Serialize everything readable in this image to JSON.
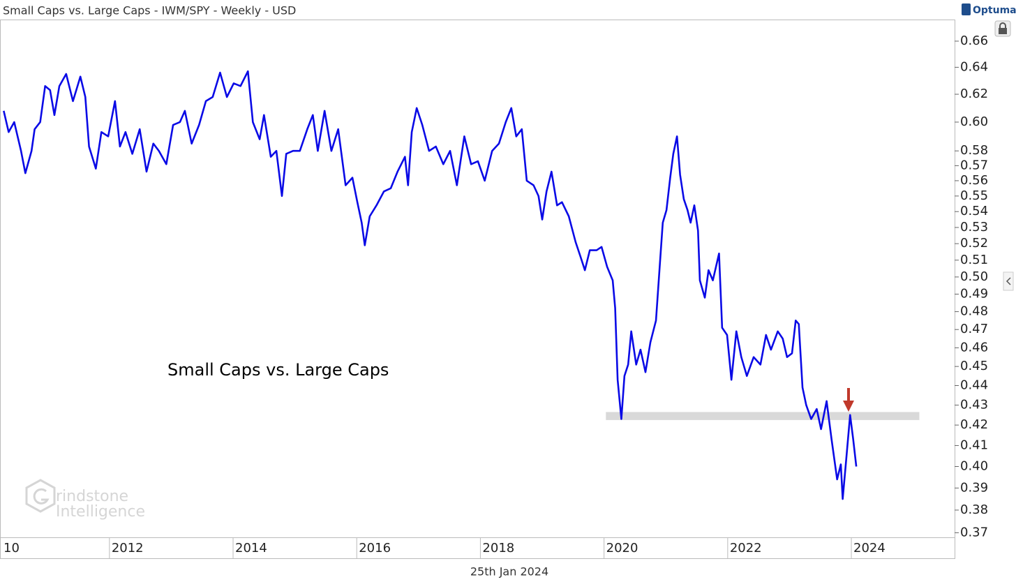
{
  "chart_data": {
    "type": "line",
    "title": "Small Caps vs. Large Caps - IWM/SPY - Weekly - USD",
    "annotation": "Small Caps vs. Large Caps",
    "date_label": "25th Jan 2024",
    "brand": "Optuma",
    "watermark": [
      "rindstone",
      "Intelligence"
    ],
    "log_scale": true,
    "xlim": [
      2010.23,
      2025.67
    ],
    "ylim": [
      0.368,
      0.677
    ],
    "xticks": [
      {
        "value": 2010,
        "label": "10"
      },
      2012,
      2014,
      2016,
      2018,
      2020,
      2022,
      2024
    ],
    "yticks": [
      0.66,
      0.64,
      0.62,
      {
        "value": 0.6,
        "label": "0.60"
      },
      0.58,
      0.57,
      0.56,
      0.55,
      0.54,
      0.53,
      0.52,
      0.51,
      {
        "value": 0.5,
        "label": "0.50"
      },
      0.49,
      0.48,
      0.47,
      0.46,
      0.45,
      0.44,
      0.43,
      0.42,
      0.41,
      {
        "value": 0.4,
        "label": "0.40"
      },
      0.39,
      0.38,
      0.37
    ],
    "support_zone": {
      "from": 0.4225,
      "to": 0.4265,
      "x": [
        2020.03,
        2025.1
      ],
      "color": "#d9d9d9"
    },
    "series": [
      {
        "name": "IWM/SPY",
        "color": "#0a0ae6",
        "x": [
          2010.29,
          2010.37,
          2010.46,
          2010.57,
          2010.64,
          2010.74,
          2010.79,
          2010.88,
          2010.96,
          2011.04,
          2011.11,
          2011.19,
          2011.3,
          2011.41,
          2011.53,
          2011.61,
          2011.67,
          2011.78,
          2011.87,
          2011.98,
          2012.09,
          2012.17,
          2012.26,
          2012.37,
          2012.49,
          2012.6,
          2012.71,
          2012.8,
          2012.92,
          2013.03,
          2013.14,
          2013.22,
          2013.33,
          2013.45,
          2013.56,
          2013.67,
          2013.79,
          2013.9,
          2014.01,
          2014.12,
          2014.24,
          2014.32,
          2014.43,
          2014.5,
          2014.61,
          2014.7,
          2014.79,
          2014.86,
          2014.97,
          2015.08,
          2015.2,
          2015.29,
          2015.37,
          2015.48,
          2015.59,
          2015.7,
          2015.82,
          2015.93,
          2016.01,
          2016.08,
          2016.13,
          2016.21,
          2016.32,
          2016.44,
          2016.55,
          2016.66,
          2016.78,
          2016.83,
          2016.89,
          2016.97,
          2017.06,
          2017.17,
          2017.28,
          2017.4,
          2017.51,
          2017.62,
          2017.74,
          2017.85,
          2017.96,
          2018.07,
          2018.19,
          2018.3,
          2018.41,
          2018.5,
          2018.58,
          2018.67,
          2018.75,
          2018.86,
          2018.94,
          2019.0,
          2019.07,
          2019.15,
          2019.24,
          2019.32,
          2019.43,
          2019.54,
          2019.62,
          2019.69,
          2019.77,
          2019.88,
          2019.96,
          2020.05,
          2020.14,
          2020.18,
          2020.22,
          2020.28,
          2020.33,
          2020.39,
          2020.44,
          2020.52,
          2020.59,
          2020.67,
          2020.75,
          2020.84,
          2020.9,
          2020.95,
          2021.01,
          2021.07,
          2021.12,
          2021.18,
          2021.23,
          2021.29,
          2021.35,
          2021.4,
          2021.46,
          2021.52,
          2021.55,
          2021.63,
          2021.69,
          2021.76,
          2021.86,
          2021.91,
          2021.99,
          2022.06,
          2022.14,
          2022.22,
          2022.31,
          2022.42,
          2022.53,
          2022.62,
          2022.7,
          2022.81,
          2022.89,
          2022.96,
          2023.04,
          2023.1,
          2023.15,
          2023.21,
          2023.27,
          2023.35,
          2023.44,
          2023.51,
          2023.6,
          2023.68,
          2023.77,
          2023.83,
          2023.86,
          2023.91,
          2023.98,
          2024.03,
          2024.08
        ],
        "values": [
          0.608,
          0.593,
          0.6,
          0.58,
          0.565,
          0.58,
          0.595,
          0.6,
          0.626,
          0.623,
          0.605,
          0.626,
          0.635,
          0.615,
          0.633,
          0.618,
          0.583,
          0.568,
          0.593,
          0.59,
          0.615,
          0.583,
          0.593,
          0.578,
          0.595,
          0.566,
          0.585,
          0.58,
          0.571,
          0.598,
          0.6,
          0.608,
          0.585,
          0.598,
          0.615,
          0.618,
          0.636,
          0.618,
          0.628,
          0.626,
          0.637,
          0.6,
          0.588,
          0.605,
          0.576,
          0.58,
          0.55,
          0.578,
          0.58,
          0.58,
          0.595,
          0.605,
          0.58,
          0.608,
          0.58,
          0.595,
          0.557,
          0.562,
          0.546,
          0.533,
          0.519,
          0.537,
          0.544,
          0.553,
          0.555,
          0.566,
          0.576,
          0.557,
          0.593,
          0.61,
          0.598,
          0.58,
          0.583,
          0.571,
          0.58,
          0.557,
          0.59,
          0.571,
          0.573,
          0.56,
          0.58,
          0.585,
          0.6,
          0.61,
          0.59,
          0.595,
          0.56,
          0.557,
          0.55,
          0.535,
          0.553,
          0.566,
          0.544,
          0.546,
          0.537,
          0.521,
          0.512,
          0.504,
          0.516,
          0.516,
          0.518,
          0.506,
          0.498,
          0.482,
          0.443,
          0.423,
          0.445,
          0.451,
          0.469,
          0.451,
          0.459,
          0.447,
          0.463,
          0.475,
          0.506,
          0.533,
          0.541,
          0.562,
          0.578,
          0.59,
          0.564,
          0.548,
          0.541,
          0.533,
          0.544,
          0.528,
          0.498,
          0.488,
          0.504,
          0.498,
          0.514,
          0.471,
          0.467,
          0.443,
          0.469,
          0.455,
          0.445,
          0.455,
          0.451,
          0.467,
          0.459,
          0.469,
          0.465,
          0.455,
          0.457,
          0.475,
          0.473,
          0.439,
          0.43,
          0.423,
          0.428,
          0.418,
          0.432,
          0.413,
          0.394,
          0.401,
          0.385,
          0.401,
          0.425,
          0.413,
          0.4
        ]
      }
    ]
  }
}
